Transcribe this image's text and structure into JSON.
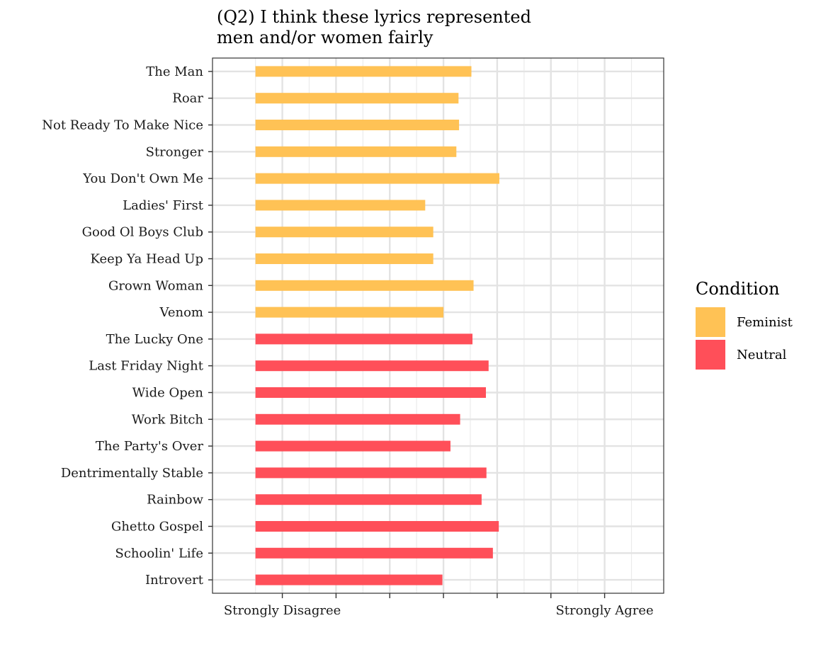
{
  "chart_data": {
    "type": "bar",
    "orientation": "horizontal",
    "title_lines": [
      "(Q2) I think these lyrics represented",
      "men and/or women fairly"
    ],
    "xlabel": "",
    "ylabel": "",
    "xlim": [
      0.35,
      4.55
    ],
    "x_tick_positions": [
      1,
      1.5,
      2,
      2.5,
      3,
      3.5,
      4
    ],
    "x_tick_labels": [
      {
        "value": 1,
        "label": "Strongly Disagree"
      },
      {
        "value": 4,
        "label": "Strongly Agree"
      }
    ],
    "categories": [
      "The Man",
      "Roar",
      "Not Ready To Make Nice",
      "Stronger",
      "You Don't Own Me",
      "Ladies' First",
      "Good Ol Boys Club",
      "Keep Ya Head Up",
      "Grown Woman",
      "Venom",
      "The Lucky One",
      "Last Friday Night",
      "Wide Open",
      "Work Bitch",
      "The Party's Over",
      "Dentrimentally Stable",
      "Rainbow",
      "Ghetto Gospel",
      "Schoolin' Life",
      "Introvert"
    ],
    "values": [
      2.76,
      2.64,
      2.645,
      2.62,
      3.02,
      2.33,
      2.405,
      2.405,
      2.78,
      2.5,
      2.77,
      2.92,
      2.895,
      2.655,
      2.565,
      2.9,
      2.855,
      3.015,
      2.96,
      2.49
    ],
    "series_assignment": [
      "Feminist",
      "Feminist",
      "Feminist",
      "Feminist",
      "Feminist",
      "Feminist",
      "Feminist",
      "Feminist",
      "Feminist",
      "Feminist",
      "Neutral",
      "Neutral",
      "Neutral",
      "Neutral",
      "Neutral",
      "Neutral",
      "Neutral",
      "Neutral",
      "Neutral",
      "Neutral"
    ],
    "legend": {
      "title": "Condition",
      "position": "right",
      "items": [
        {
          "name": "Feminist",
          "color": "#FFC255"
        },
        {
          "name": "Neutral",
          "color": "#FF4F59"
        }
      ]
    },
    "grid": true
  }
}
